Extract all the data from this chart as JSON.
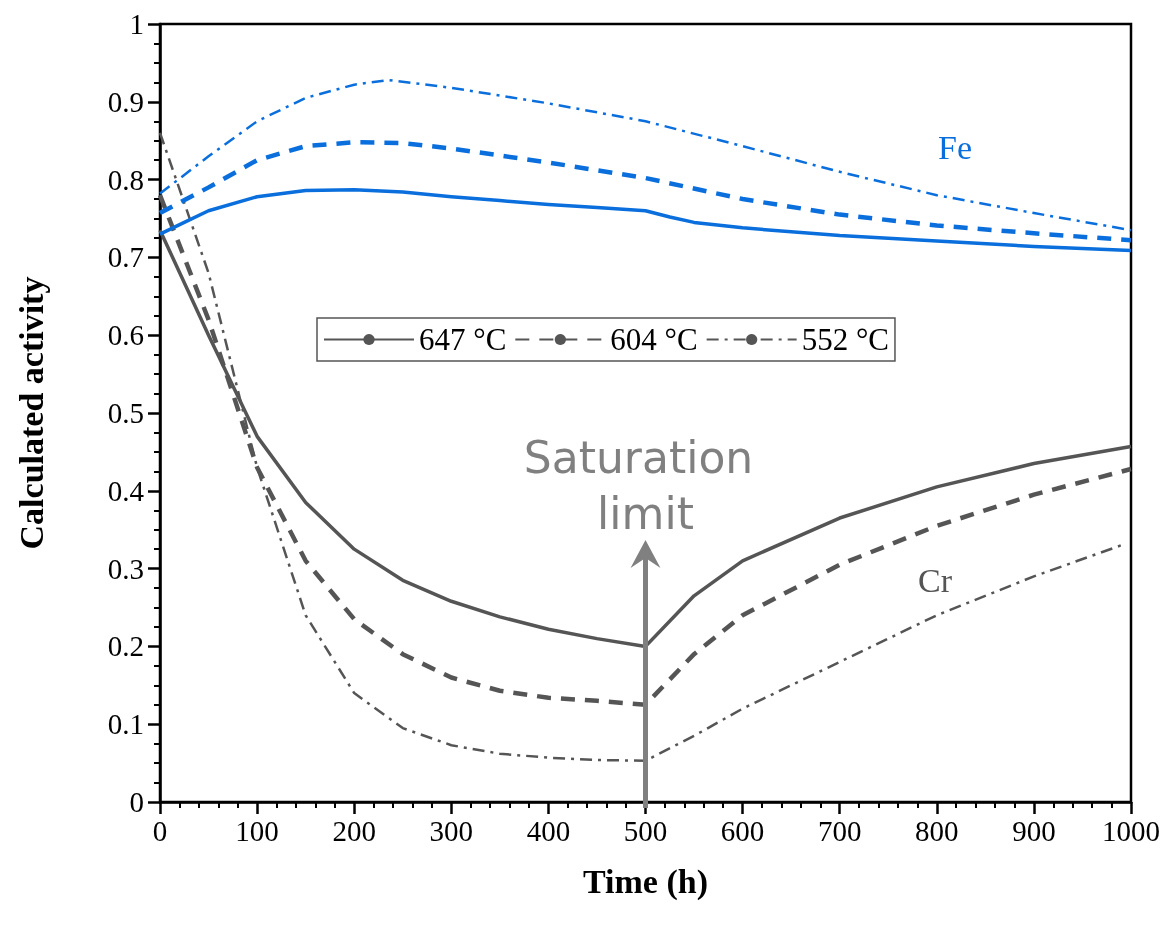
{
  "chart_data": {
    "type": "line",
    "xlabel": "Time (h)",
    "ylabel": "Calculated activity",
    "xlim": [
      0,
      1000
    ],
    "xticks": [
      0,
      100,
      200,
      300,
      400,
      500,
      600,
      700,
      800,
      900,
      1000
    ],
    "ylim": [
      0,
      1
    ],
    "yticks": [
      0,
      0.1,
      0.2,
      0.3,
      0.4,
      0.5,
      0.6,
      0.7,
      0.8,
      0.9,
      1
    ],
    "grid": false,
    "legend": "center",
    "marker": "none",
    "series": [
      {
        "name": "647 °C",
        "color": "#555555",
        "line_style": "solid",
        "x": [
          0,
          50,
          100,
          150,
          200,
          250,
          300,
          350,
          400,
          450,
          500,
          550,
          600,
          700,
          800,
          900,
          1000
        ],
        "values": [
          0.735,
          0.6,
          0.47,
          0.385,
          0.325,
          0.285,
          0.258,
          0.238,
          0.222,
          0.21,
          0.2,
          0.265,
          0.31,
          0.365,
          0.405,
          0.435,
          0.457
        ]
      },
      {
        "name": "604 °C",
        "color": "#555555",
        "line_style": "dashed",
        "x": [
          0,
          50,
          100,
          150,
          200,
          250,
          300,
          350,
          400,
          450,
          500,
          550,
          600,
          700,
          800,
          900,
          1000
        ],
        "values": [
          0.78,
          0.62,
          0.43,
          0.31,
          0.235,
          0.19,
          0.16,
          0.143,
          0.134,
          0.13,
          0.125,
          0.19,
          0.24,
          0.305,
          0.355,
          0.395,
          0.428
        ]
      },
      {
        "name": "552 °C",
        "color": "#555555",
        "line_style": "dashdot",
        "x": [
          0,
          50,
          100,
          150,
          200,
          250,
          300,
          350,
          400,
          450,
          500,
          550,
          600,
          700,
          800,
          900,
          990
        ],
        "values": [
          0.86,
          0.68,
          0.43,
          0.24,
          0.14,
          0.095,
          0.073,
          0.062,
          0.057,
          0.054,
          0.053,
          0.085,
          0.12,
          0.18,
          0.24,
          0.29,
          0.33
        ]
      },
      {
        "color": "#0a6fdc",
        "line_style": "solid",
        "x": [
          0,
          25,
          50,
          100,
          150,
          200,
          250,
          300,
          350,
          400,
          450,
          500,
          525,
          550,
          600,
          700,
          800,
          900,
          1000
        ],
        "values": [
          0.73,
          0.745,
          0.76,
          0.778,
          0.786,
          0.787,
          0.784,
          0.778,
          0.773,
          0.768,
          0.764,
          0.76,
          0.752,
          0.745,
          0.738,
          0.728,
          0.721,
          0.714,
          0.709
        ]
      },
      {
        "color": "#0a6fdc",
        "line_style": "dashed",
        "x": [
          0,
          50,
          100,
          150,
          200,
          250,
          300,
          400,
          500,
          600,
          700,
          800,
          900,
          1000
        ],
        "values": [
          0.757,
          0.79,
          0.825,
          0.843,
          0.848,
          0.847,
          0.84,
          0.822,
          0.802,
          0.775,
          0.755,
          0.741,
          0.731,
          0.722
        ]
      },
      {
        "color": "#0a6fdc",
        "line_style": "dashdot",
        "x": [
          0,
          50,
          100,
          150,
          200,
          235,
          300,
          400,
          500,
          600,
          700,
          800,
          900,
          1000
        ],
        "values": [
          0.782,
          0.83,
          0.875,
          0.905,
          0.922,
          0.928,
          0.918,
          0.898,
          0.875,
          0.843,
          0.81,
          0.78,
          0.757,
          0.735
        ]
      }
    ],
    "ref_lines": [
      {
        "axis": "x",
        "value": 500,
        "label": "Saturation limit",
        "color": "#808080"
      }
    ],
    "annotations": [
      "Fe",
      "Cr"
    ]
  }
}
